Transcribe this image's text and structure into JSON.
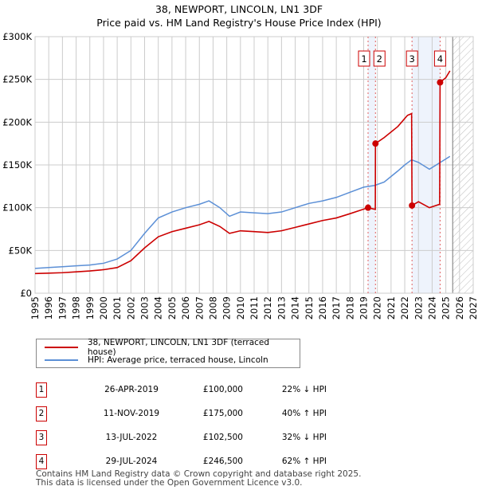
{
  "title": [
    "38, NEWPORT, LINCOLN, LN1 3DF",
    "Price paid vs. HM Land Registry's House Price Index (HPI)"
  ],
  "chart_data": {
    "type": "line",
    "title": "38, NEWPORT, LINCOLN, LN1 3DF — Price paid vs. HM Land Registry's House Price Index (HPI)",
    "xlim": [
      1995,
      2027
    ],
    "ylim": [
      0,
      300000
    ],
    "xticks": [
      "1995",
      "1996",
      "1997",
      "1998",
      "1999",
      "2000",
      "2001",
      "2002",
      "2003",
      "2004",
      "2005",
      "2006",
      "2007",
      "2008",
      "2009",
      "2010",
      "2011",
      "2012",
      "2013",
      "2014",
      "2015",
      "2016",
      "2017",
      "2018",
      "2019",
      "2020",
      "2021",
      "2022",
      "2023",
      "2024",
      "2025",
      "2026",
      "2027"
    ],
    "yticks": [
      {
        "v": 0,
        "label": "£0"
      },
      {
        "v": 50000,
        "label": "£50K"
      },
      {
        "v": 100000,
        "label": "£100K"
      },
      {
        "v": 150000,
        "label": "£150K"
      },
      {
        "v": 200000,
        "label": "£200K"
      },
      {
        "v": 250000,
        "label": "£250K"
      },
      {
        "v": 300000,
        "label": "£300K"
      }
    ],
    "series": [
      {
        "name": "38, NEWPORT, LINCOLN, LN1 3DF (terraced house)",
        "color": "#cc0000",
        "points": [
          [
            1995,
            23000
          ],
          [
            1996,
            23500
          ],
          [
            1997,
            24000
          ],
          [
            1998,
            25000
          ],
          [
            1999,
            26000
          ],
          [
            2000,
            27500
          ],
          [
            2001,
            30000
          ],
          [
            2002,
            38000
          ],
          [
            2003,
            53000
          ],
          [
            2004,
            66000
          ],
          [
            2005,
            72000
          ],
          [
            2006,
            76000
          ],
          [
            2007,
            80000
          ],
          [
            2007.7,
            84000
          ],
          [
            2008.5,
            78000
          ],
          [
            2009.2,
            70000
          ],
          [
            2010,
            73000
          ],
          [
            2011,
            72000
          ],
          [
            2012,
            71000
          ],
          [
            2013,
            73000
          ],
          [
            2014,
            77000
          ],
          [
            2015,
            81000
          ],
          [
            2016,
            85000
          ],
          [
            2017,
            88000
          ],
          [
            2018,
            93000
          ],
          [
            2019.32,
            100000
          ],
          [
            2019.85,
            98000
          ],
          [
            2019.86,
            175000
          ],
          [
            2020.5,
            182000
          ],
          [
            2021.5,
            195000
          ],
          [
            2022.2,
            208000
          ],
          [
            2022.5,
            210000
          ],
          [
            2022.53,
            102500
          ],
          [
            2023,
            107000
          ],
          [
            2023.8,
            100000
          ],
          [
            2024.55,
            104000
          ],
          [
            2024.58,
            246500
          ],
          [
            2025,
            252000
          ],
          [
            2025.3,
            260000
          ]
        ]
      },
      {
        "name": "HPI: Average price, terraced house, Lincoln",
        "color": "#5b8fd6",
        "points": [
          [
            1995,
            29000
          ],
          [
            1996,
            30000
          ],
          [
            1997,
            31000
          ],
          [
            1998,
            32000
          ],
          [
            1999,
            33000
          ],
          [
            2000,
            35000
          ],
          [
            2001,
            40000
          ],
          [
            2002,
            50000
          ],
          [
            2003,
            70000
          ],
          [
            2004,
            88000
          ],
          [
            2005,
            95000
          ],
          [
            2006,
            100000
          ],
          [
            2007,
            104000
          ],
          [
            2007.7,
            108000
          ],
          [
            2008.5,
            100000
          ],
          [
            2009.2,
            90000
          ],
          [
            2010,
            95000
          ],
          [
            2011,
            94000
          ],
          [
            2012,
            93000
          ],
          [
            2013,
            95000
          ],
          [
            2014,
            100000
          ],
          [
            2015,
            105000
          ],
          [
            2016,
            108000
          ],
          [
            2017,
            112000
          ],
          [
            2018,
            118000
          ],
          [
            2019,
            124000
          ],
          [
            2019.8,
            126000
          ],
          [
            2020.5,
            130000
          ],
          [
            2021.5,
            143000
          ],
          [
            2022,
            150000
          ],
          [
            2022.5,
            156000
          ],
          [
            2023,
            153000
          ],
          [
            2023.8,
            145000
          ],
          [
            2024.5,
            152000
          ],
          [
            2025.3,
            160000
          ]
        ]
      }
    ],
    "sales": [
      {
        "n": "1",
        "x": 2019.32,
        "v": 100000
      },
      {
        "n": "2",
        "x": 2019.86,
        "v": 175000
      },
      {
        "n": "3",
        "x": 2022.53,
        "v": 102500
      },
      {
        "n": "4",
        "x": 2024.58,
        "v": 246500
      }
    ],
    "shaded": [
      [
        2019.32,
        2019.86
      ],
      [
        2022.53,
        2024.58
      ]
    ],
    "forecast_start": 2025.5,
    "legend": "bottom"
  },
  "legend": [
    "38, NEWPORT, LINCOLN, LN1 3DF (terraced house)",
    "HPI: Average price, terraced house, Lincoln"
  ],
  "sales_table": [
    {
      "n": "1",
      "date": "26-APR-2019",
      "price": "£100,000",
      "hpi": "22% ↓ HPI"
    },
    {
      "n": "2",
      "date": "11-NOV-2019",
      "price": "£175,000",
      "hpi": "40% ↑ HPI"
    },
    {
      "n": "3",
      "date": "13-JUL-2022",
      "price": "£102,500",
      "hpi": "32% ↓ HPI"
    },
    {
      "n": "4",
      "date": "29-JUL-2024",
      "price": "£246,500",
      "hpi": "62% ↑ HPI"
    }
  ],
  "footer": [
    "Contains HM Land Registry data © Crown copyright and database right 2025.",
    "This data is licensed under the Open Government Licence v3.0."
  ]
}
